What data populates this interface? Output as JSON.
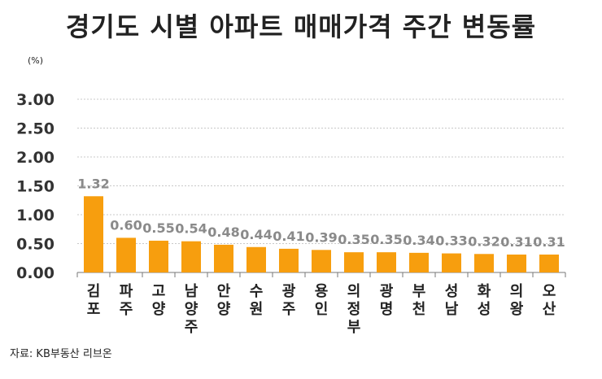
{
  "title": "경기도 시별 아파트 매매가격 주간 변동률",
  "unit": "(%)",
  "source": "자료: KB부동산 리브온",
  "chart_data": {
    "type": "bar",
    "categories": [
      "김포",
      "파주",
      "고양",
      "남양주",
      "안양",
      "수원",
      "광주",
      "용인",
      "의정부",
      "광명",
      "부천",
      "성남",
      "화성",
      "의왕",
      "오산"
    ],
    "values": [
      1.32,
      0.6,
      0.55,
      0.54,
      0.48,
      0.44,
      0.41,
      0.39,
      0.35,
      0.35,
      0.34,
      0.33,
      0.32,
      0.31,
      0.31
    ],
    "data_labels": [
      "1.32",
      "0.60",
      "0.55",
      "0.54",
      "0.48",
      "0.44",
      "0.41",
      "0.39",
      "0.35",
      "0.35",
      "0.34",
      "0.33",
      "0.32",
      "0.31",
      "0.31"
    ],
    "ylabel": "(%)",
    "ylim": [
      0,
      3.0
    ],
    "yticks": [
      "0.00",
      "0.50",
      "1.00",
      "1.50",
      "2.00",
      "2.50",
      "3.00"
    ],
    "grid": true,
    "bar_color": "#F79E0E"
  }
}
